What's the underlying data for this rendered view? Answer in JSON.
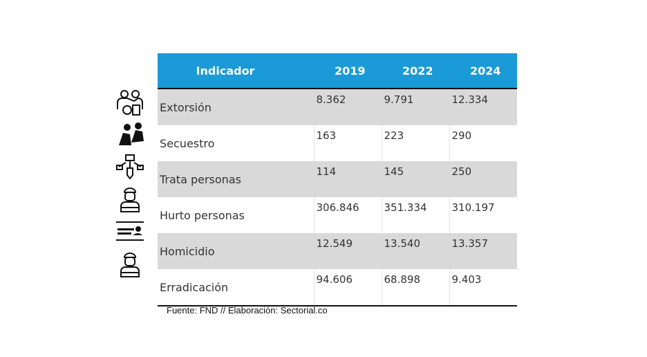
{
  "table": {
    "headers": [
      "Indicador",
      "2019",
      "2022",
      "2024"
    ],
    "rows": [
      {
        "icon": "extortion-icon",
        "label": "Extorsión",
        "values": [
          "8.362",
          "9.791",
          "12.334"
        ]
      },
      {
        "icon": "kidnapping-icon",
        "label": "Secuestro",
        "values": [
          "163",
          "223",
          "290"
        ]
      },
      {
        "icon": "human-trafficking-icon",
        "label": "Trata personas",
        "values": [
          "114",
          "145",
          "250"
        ]
      },
      {
        "icon": "thief-icon",
        "label": "Hurto personas",
        "values": [
          "306.846",
          "351.334",
          "310.197"
        ]
      },
      {
        "icon": "homicide-icon",
        "label": "Homicidio",
        "values": [
          "12.549",
          "13.540",
          "13.357"
        ]
      },
      {
        "icon": "thief-icon",
        "label": "Erradicación",
        "values": [
          "94.606",
          "68.898",
          "9.403"
        ]
      }
    ]
  },
  "colors": {
    "header": "#1a9ad6",
    "stripe": "#d9d9d9"
  },
  "source": "Fuente: FND // Elaboración: Sectorial.co"
}
